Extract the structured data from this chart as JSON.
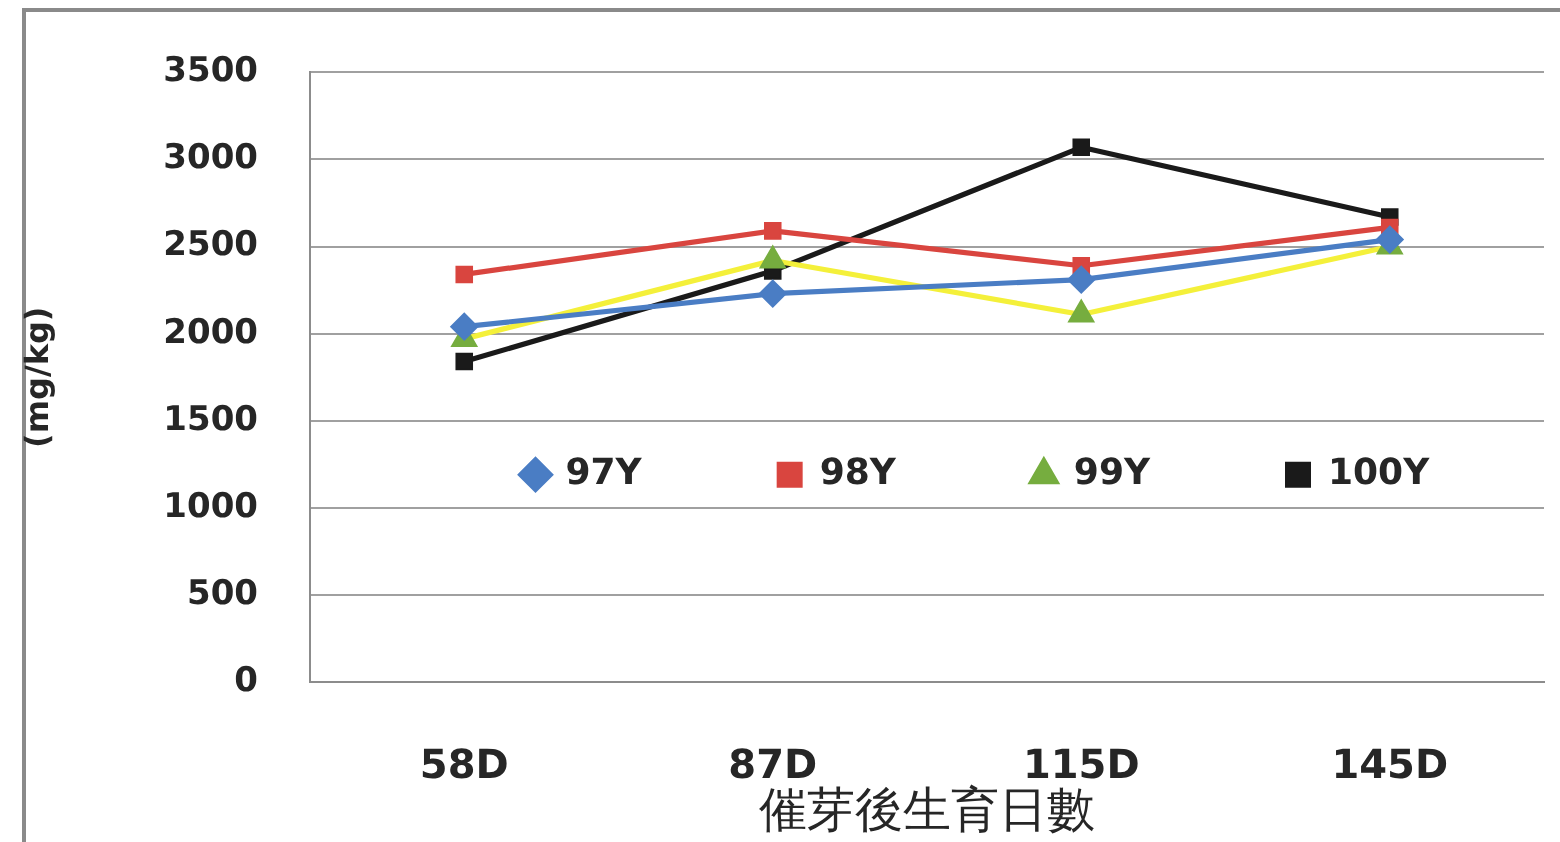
{
  "chart_data": {
    "type": "line",
    "xlabel": "催芽後生育日數",
    "ylabel": "(mg/kg)",
    "categories": [
      "58D",
      "87D",
      "115D",
      "145D"
    ],
    "series": [
      {
        "name": "97Y",
        "color": "#4a7dc4",
        "marker": "diamond",
        "values": [
          2040,
          2230,
          2310,
          2540
        ]
      },
      {
        "name": "98Y",
        "color": "#d9453f",
        "marker": "square",
        "values": [
          2340,
          2590,
          2390,
          2610
        ]
      },
      {
        "name": "99Y",
        "color": "#f4f03a",
        "colors": [
          "#76ad3f",
          "#76ad3f",
          "#76ad3f",
          "#76ad3f"
        ],
        "marker": "triangle",
        "values": [
          1970,
          2420,
          2110,
          2500
        ]
      },
      {
        "name": "100Y",
        "color": "#1a1a1a",
        "marker": "square",
        "values": [
          1840,
          2360,
          3070,
          2670
        ]
      }
    ],
    "ylim": [
      0,
      3500
    ],
    "yticks": [
      0,
      500,
      1000,
      1500,
      2000,
      2500,
      3000,
      3500
    ],
    "grid": "y",
    "legend": "center"
  }
}
